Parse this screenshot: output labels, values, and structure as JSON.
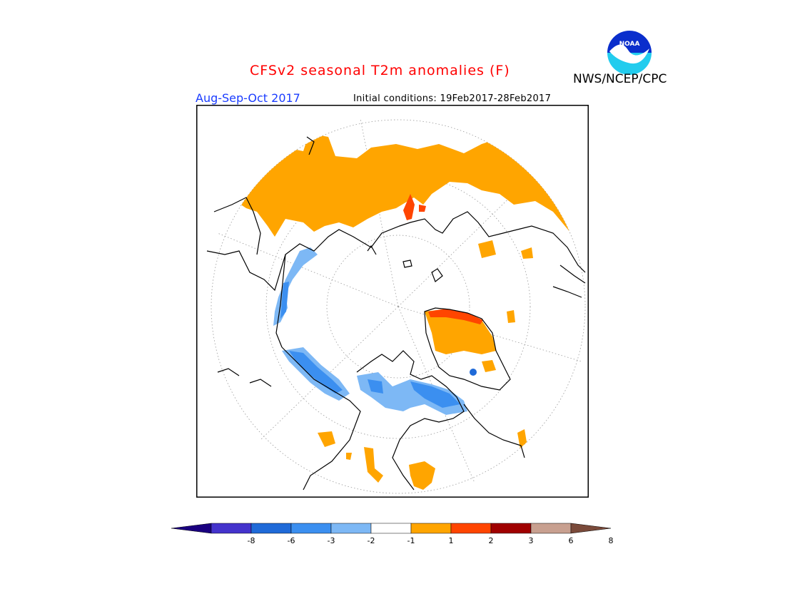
{
  "header": {
    "title": "CFSv2 seasonal T2m anomalies (F)",
    "agency": "NWS/NCEP/CPC",
    "season": "Aug-Sep-Oct 2017",
    "initial_conditions": "Initial conditions: 19Feb2017-28Feb2017",
    "logo_text": "NOAA"
  },
  "colorbar": {
    "colors": [
      "#1a0080",
      "#4433cc",
      "#1f6ad8",
      "#3b8ff0",
      "#7db8f5",
      "#ffffff",
      "#ffa500",
      "#ff4500",
      "#a00000",
      "#c8a090",
      "#7a4a3a"
    ],
    "ticks": [
      "-8",
      "-6",
      "-3",
      "-2",
      "-1",
      "1",
      "2",
      "3",
      "6",
      "8"
    ]
  },
  "map": {
    "projection": "polar stereographic",
    "anomaly_colors": {
      "warm1": "#ffa500",
      "warm2": "#ff4500",
      "warm3": "#c00000",
      "cool1": "#7db8f5",
      "cool2": "#3b8ff0",
      "cool3": "#1f6ad8"
    }
  }
}
